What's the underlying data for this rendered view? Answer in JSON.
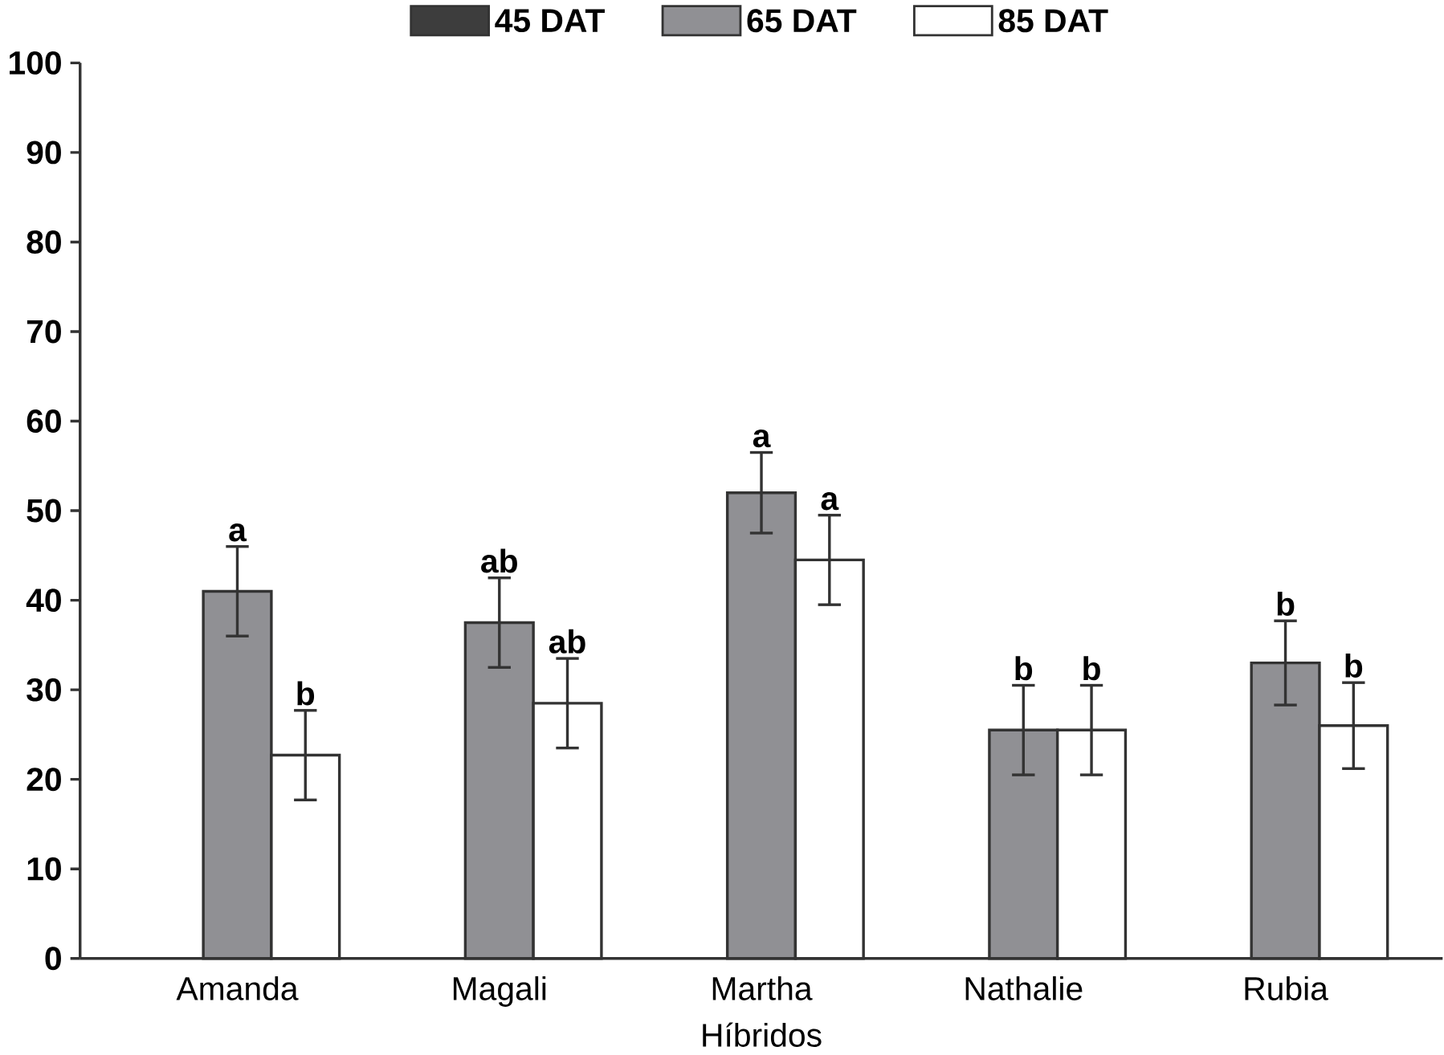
{
  "chart_data": {
    "type": "bar",
    "xlabel": "Híbridos",
    "categories": [
      "Amanda",
      "Magali",
      "Martha",
      "Nathalie",
      "Rubia"
    ],
    "series": [
      {
        "name": "45 DAT",
        "color": "#3d3d3d",
        "values": [
          null,
          null,
          null,
          null,
          null
        ]
      },
      {
        "name": "65 DAT",
        "color": "#909094",
        "values": [
          41,
          37.5,
          52,
          25.5,
          33
        ],
        "errors": [
          5,
          5,
          4.5,
          5,
          4.7
        ],
        "value_labels": [
          "a",
          "ab",
          "a",
          "b",
          "b"
        ]
      },
      {
        "name": "85 DAT",
        "color": "#ffffff",
        "values": [
          22.7,
          28.5,
          44.5,
          25.5,
          26
        ],
        "errors": [
          5,
          5,
          5,
          5,
          4.8
        ],
        "value_labels": [
          "b",
          "ab",
          "a",
          "b",
          "b"
        ]
      }
    ],
    "ylim": [
      0,
      100
    ],
    "yticks": [
      0,
      10,
      20,
      30,
      40,
      50,
      60,
      70,
      80,
      90,
      100
    ],
    "legend": "top",
    "grid": false
  }
}
